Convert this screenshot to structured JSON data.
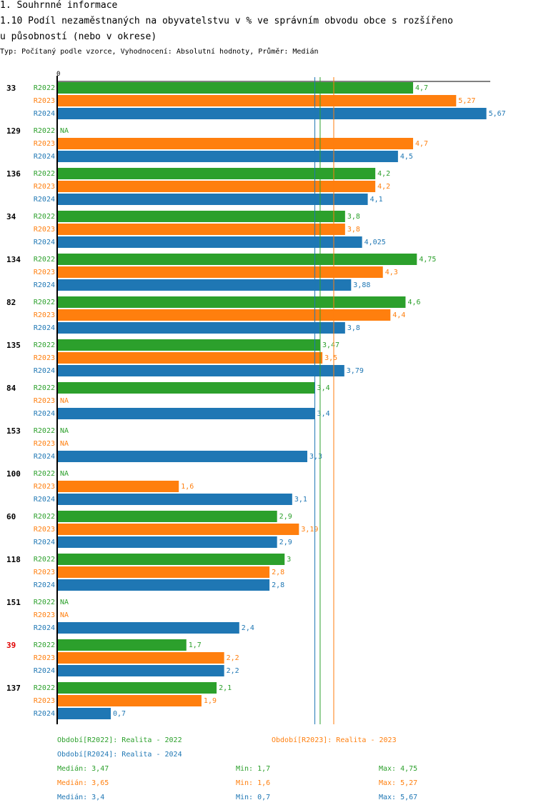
{
  "header": {
    "section": "1. Souhrnné informace",
    "title_line1": "1.10 Podíl nezaměstnaných na obyvatelstvu v % ve správním obvodu obce s rozšířeno",
    "title_line2": "u působností (nebo v okrese)",
    "subtitle": "Typ: Počítaný podle vzorce, Vyhodnocení: Absolutní hodnoty, Průměr: Medián"
  },
  "colors": {
    "R2022": "#2ca02c",
    "R2023": "#ff7f0e",
    "R2024": "#1f77b4",
    "highlight": "#e00000"
  },
  "chart_data": {
    "type": "bar",
    "orientation": "horizontal",
    "title": "1.10 Podíl nezaměstnaných na obyvatelstvu v % ve správním obvodu obce s rozšířenou působností (nebo v okrese)",
    "xlabel": "",
    "ylabel": "",
    "x_tick_labels": [
      "0"
    ],
    "xlim": [
      0,
      5.67
    ],
    "series_names": [
      "R2022",
      "R2023",
      "R2024"
    ],
    "categories": [
      "33",
      "129",
      "136",
      "34",
      "134",
      "82",
      "135",
      "84",
      "153",
      "100",
      "60",
      "118",
      "151",
      "39",
      "137"
    ],
    "highlighted_category": "39",
    "series": [
      {
        "name": "R2022",
        "values": [
          4.7,
          null,
          4.2,
          3.8,
          4.75,
          4.6,
          3.47,
          3.4,
          null,
          null,
          2.9,
          3,
          null,
          1.7,
          2.1
        ],
        "labels": [
          "4,7",
          "NA",
          "4,2",
          "3,8",
          "4,75",
          "4,6",
          "3,47",
          "3,4",
          "NA",
          "NA",
          "2,9",
          "3",
          "NA",
          "1,7",
          "2,1"
        ]
      },
      {
        "name": "R2023",
        "values": [
          5.27,
          4.7,
          4.2,
          3.8,
          4.3,
          4.4,
          3.5,
          null,
          null,
          1.6,
          3.19,
          2.8,
          null,
          2.2,
          1.9
        ],
        "labels": [
          "5,27",
          "4,7",
          "4,2",
          "3,8",
          "4,3",
          "4,4",
          "3,5",
          "NA",
          "NA",
          "1,6",
          "3,19",
          "2,8",
          "NA",
          "2,2",
          "1,9"
        ]
      },
      {
        "name": "R2024",
        "values": [
          5.67,
          4.5,
          4.1,
          4.025,
          3.88,
          3.8,
          3.79,
          3.4,
          3.3,
          3.1,
          2.9,
          2.8,
          2.4,
          2.2,
          0.7
        ],
        "labels": [
          "5,67",
          "4,5",
          "4,1",
          "4,025",
          "3,88",
          "3,8",
          "3,79",
          "3,4",
          "3,3",
          "3,1",
          "2,9",
          "2,8",
          "2,4",
          "2,2",
          "0,7"
        ]
      }
    ],
    "median_lines": {
      "R2022": 3.47,
      "R2023": 3.65,
      "R2024": 3.4
    }
  },
  "legend": {
    "periods": [
      {
        "key": "R2022",
        "text": "Období[R2022]: Realita - 2022"
      },
      {
        "key": "R2023",
        "text": "Období[R2023]: Realita - 2023"
      },
      {
        "key": "R2024",
        "text": "Období[R2024]: Realita - 2024"
      }
    ],
    "stats": [
      {
        "key": "R2022",
        "median": "Medián: 3,47",
        "min": "Min: 1,7",
        "max": "Max: 4,75"
      },
      {
        "key": "R2023",
        "median": "Medián: 3,65",
        "min": "Min: 1,6",
        "max": "Max: 5,27"
      },
      {
        "key": "R2024",
        "median": "Medián: 3,4",
        "min": "Min: 0,7",
        "max": "Max: 5,67"
      }
    ]
  }
}
